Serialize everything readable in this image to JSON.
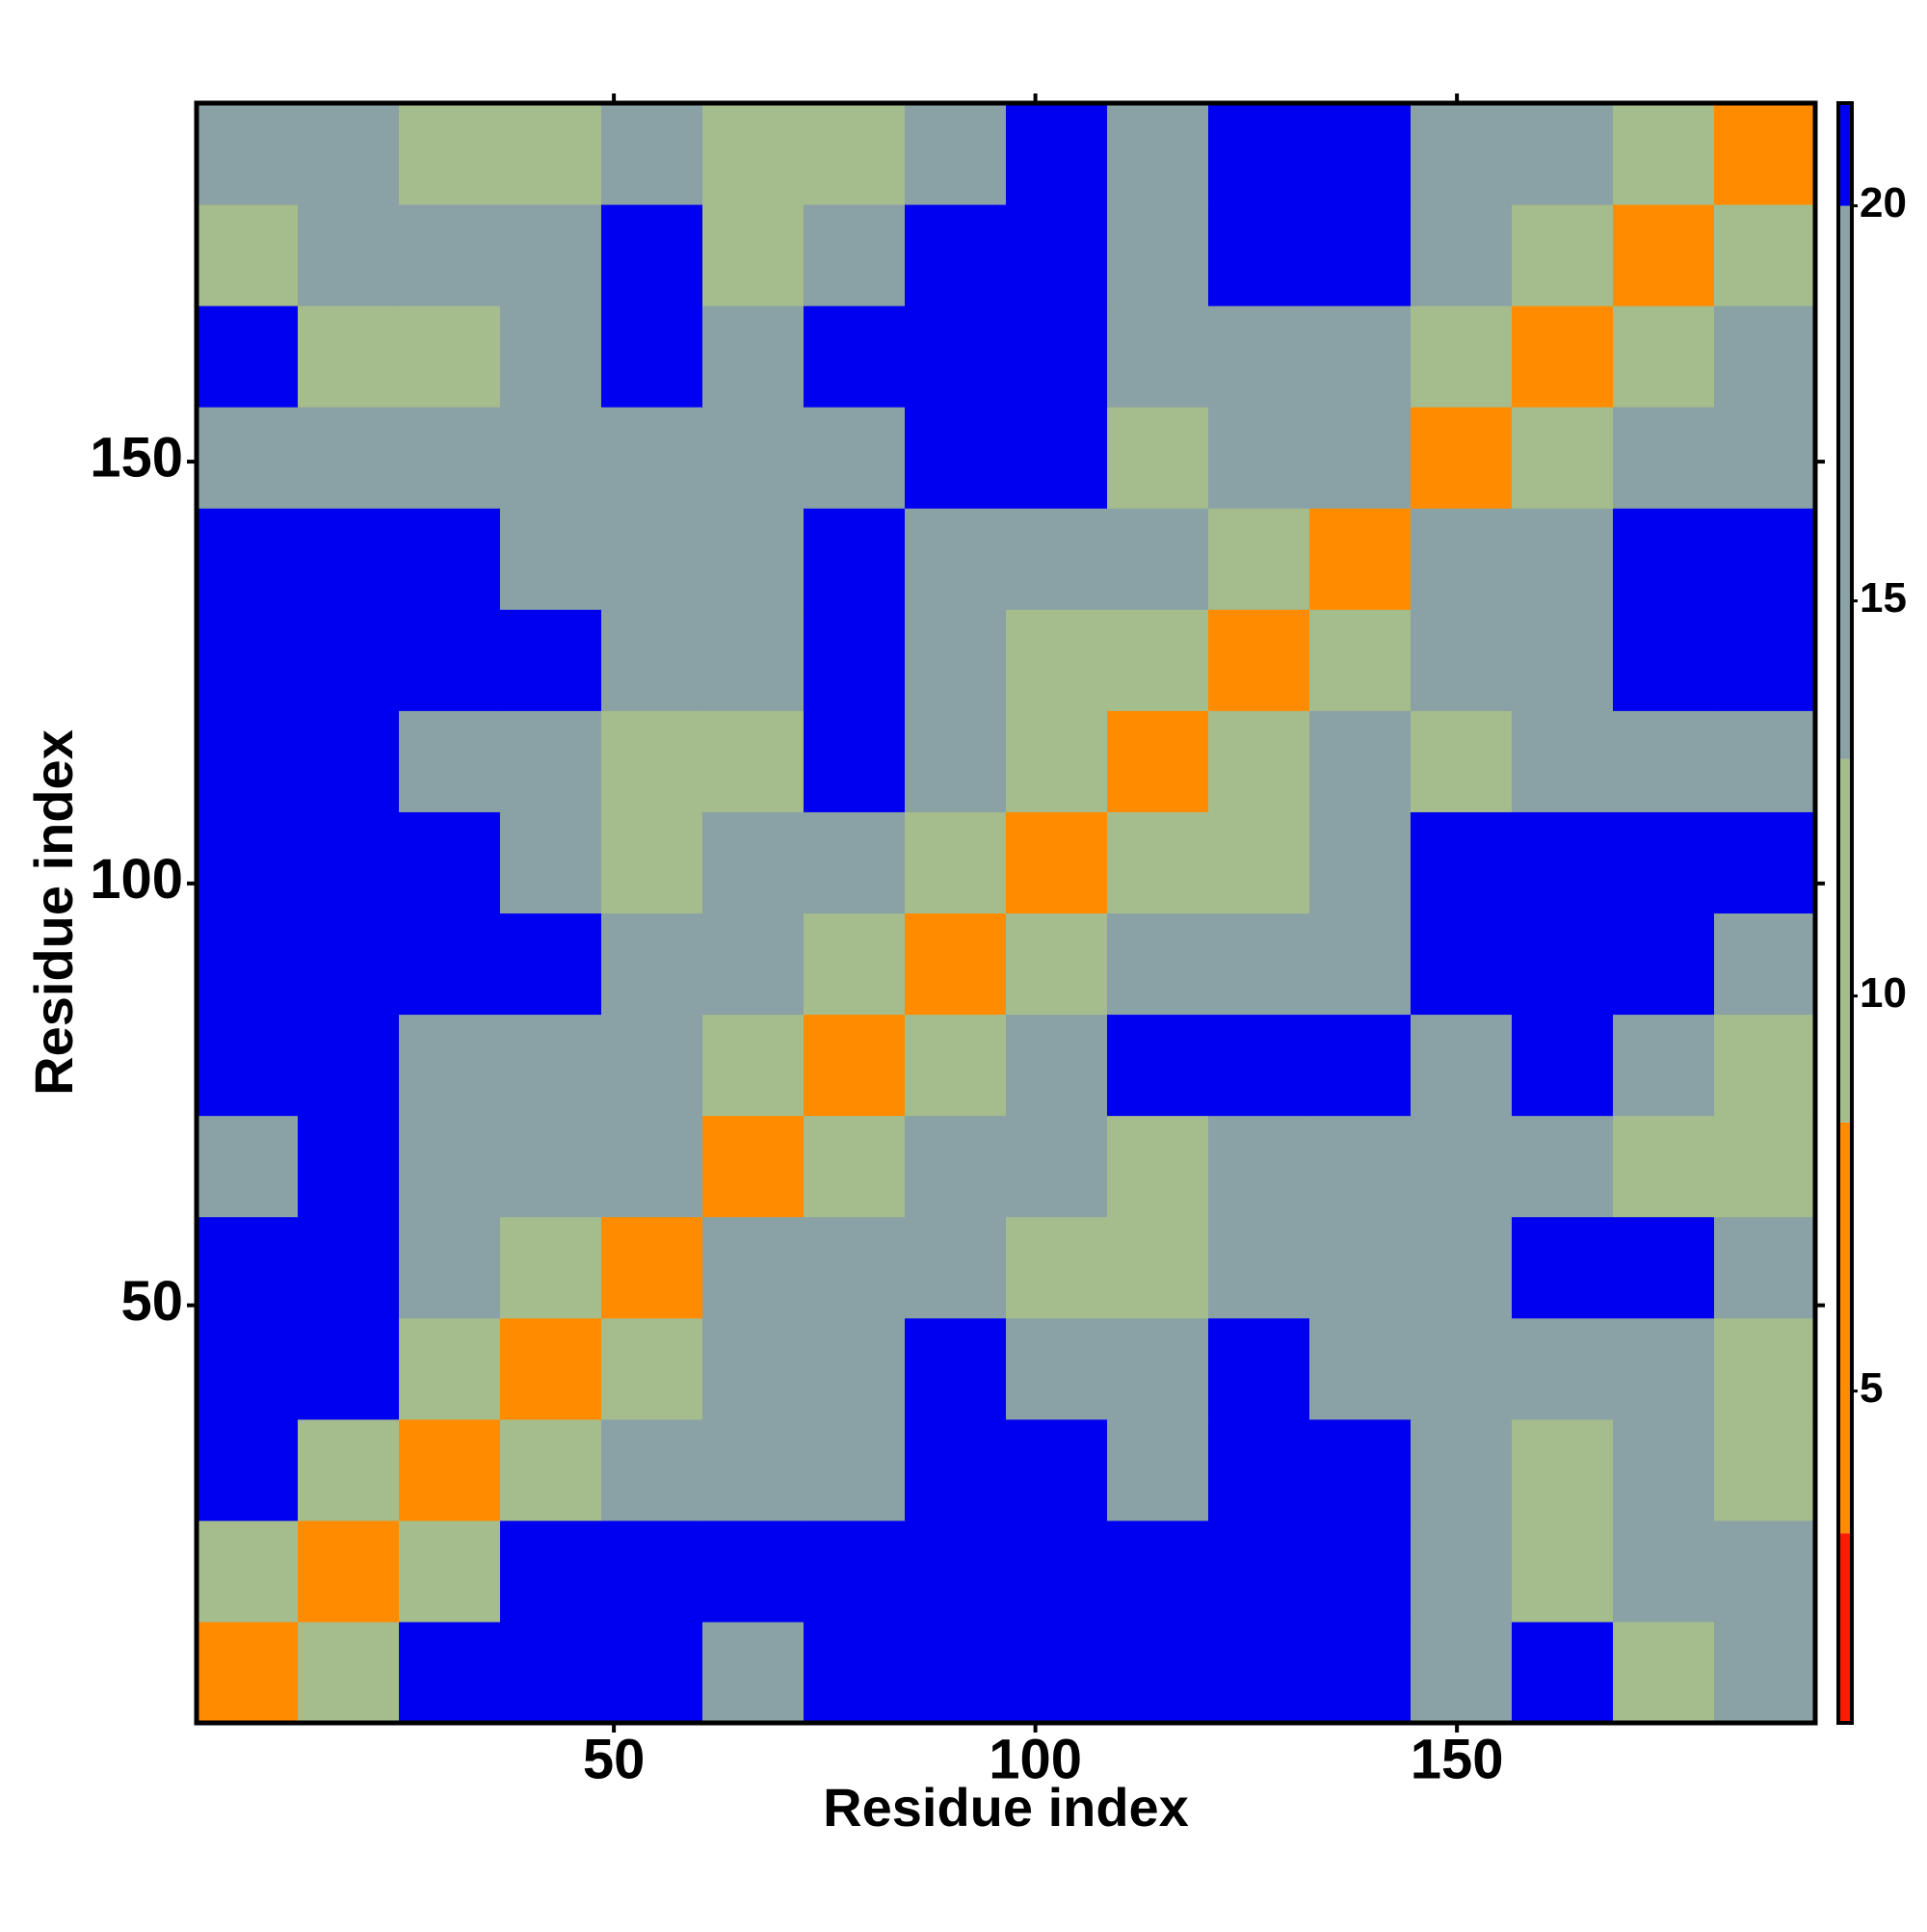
{
  "chart_data": {
    "type": "heatmap",
    "x_label": "Residue index",
    "y_label": "Residue index",
    "xlim": [
      0.5,
      192.5
    ],
    "ylim": [
      0.5,
      192.5
    ],
    "xticks": [
      50,
      100,
      150
    ],
    "yticks": [
      50,
      100,
      150
    ],
    "x_edges": [
      0.5,
      12.5,
      24.5,
      36.5,
      48.5,
      60.5,
      72.5,
      84.5,
      96.5,
      108.5,
      120.5,
      132.5,
      144.5,
      156.5,
      168.5,
      180.5,
      192.5
    ],
    "y_edges": [
      0.5,
      12.5,
      24.5,
      36.5,
      48.5,
      60.5,
      72.5,
      84.5,
      96.5,
      108.5,
      120.5,
      132.5,
      144.5,
      156.5,
      168.5,
      180.5,
      192.5
    ],
    "values": [
      [
        4,
        12,
        20,
        21,
        21,
        19,
        20,
        21,
        21,
        20,
        21,
        21,
        19,
        20,
        12,
        14
      ],
      [
        12,
        4,
        11,
        21,
        21,
        21,
        21,
        21,
        21,
        20,
        21,
        21,
        19,
        12,
        14,
        13
      ],
      [
        20,
        11,
        4,
        12,
        17,
        17,
        18,
        21,
        21,
        17,
        21,
        20,
        18,
        12,
        15,
        12
      ],
      [
        21,
        21,
        12,
        4,
        11,
        16,
        13,
        20,
        14,
        16,
        21,
        13,
        14,
        13,
        16,
        11
      ],
      [
        21,
        21,
        17,
        11,
        4,
        15,
        14,
        15,
        10,
        12,
        14,
        16,
        15,
        21,
        20,
        14
      ],
      [
        19,
        21,
        17,
        16,
        15,
        4,
        10,
        13,
        17,
        11,
        17,
        19,
        15,
        16,
        12,
        11
      ],
      [
        20,
        21,
        18,
        13,
        14,
        10,
        4,
        12,
        18,
        20,
        21,
        21,
        18,
        21,
        15,
        11
      ],
      [
        21,
        21,
        21,
        20,
        15,
        13,
        12,
        4,
        11,
        14,
        13,
        19,
        20,
        21,
        20,
        17
      ],
      [
        21,
        21,
        21,
        14,
        10,
        17,
        18,
        11,
        4,
        12,
        12,
        15,
        21,
        21,
        21,
        21
      ],
      [
        20,
        20,
        17,
        16,
        12,
        11,
        20,
        14,
        12,
        4,
        12,
        15,
        10,
        14,
        16,
        13
      ],
      [
        21,
        21,
        21,
        21,
        14,
        17,
        21,
        13,
        12,
        12,
        4,
        12,
        15,
        18,
        21,
        21
      ],
      [
        21,
        21,
        20,
        13,
        16,
        19,
        21,
        19,
        15,
        15,
        12,
        4,
        13,
        16,
        21,
        21
      ],
      [
        19,
        19,
        18,
        14,
        15,
        15,
        18,
        20,
        21,
        10,
        15,
        13,
        4,
        11,
        14,
        16
      ],
      [
        20,
        12,
        12,
        13,
        21,
        16,
        21,
        21,
        21,
        14,
        18,
        16,
        11,
        4,
        11,
        15
      ],
      [
        12,
        14,
        15,
        16,
        20,
        12,
        15,
        20,
        21,
        16,
        21,
        21,
        14,
        11,
        4,
        12
      ],
      [
        14,
        13,
        12,
        11,
        14,
        11,
        11,
        17,
        21,
        13,
        21,
        21,
        16,
        15,
        12,
        4
      ]
    ],
    "colorbar": {
      "lim": [
        0.8,
        21.3
      ],
      "ticks": [
        5,
        10,
        15,
        20
      ],
      "scale": [
        {
          "value": 0.8,
          "color": "#ff1a00"
        },
        {
          "value": 3.2,
          "color": "#ff8c00"
        },
        {
          "value": 8.4,
          "color": "#a5bc8c"
        },
        {
          "value": 13,
          "color": "#8aa1a6"
        },
        {
          "value": 20,
          "color": "#0000f0"
        }
      ]
    }
  }
}
